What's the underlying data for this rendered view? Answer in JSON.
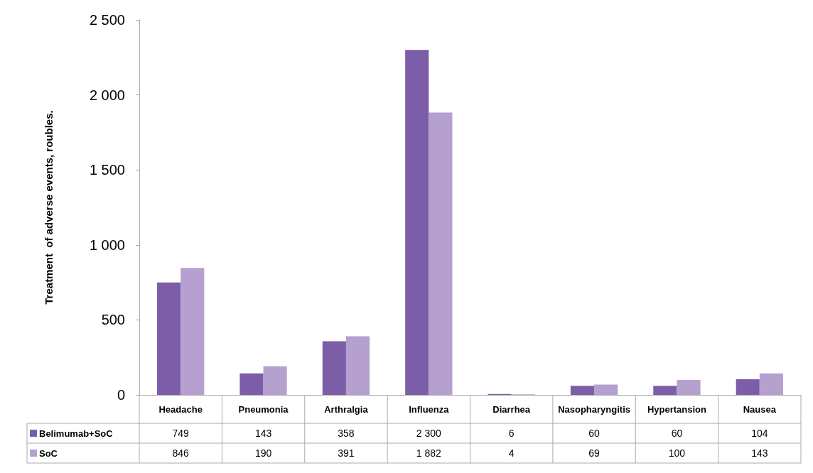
{
  "chart_data": {
    "type": "bar",
    "ylabel": "Treatment  of adverse events, roubles.",
    "categories": [
      "Headache",
      "Pneumonia",
      "Arthralgia",
      "Influenza",
      "Diarrhea",
      "Nasopharyngitis",
      "Hypertansion",
      "Nausea"
    ],
    "series": [
      {
        "name": "Belimumab+SoC",
        "color": "#7b5ea7",
        "values": [
          749,
          143,
          358,
          2300,
          6,
          60,
          60,
          104
        ],
        "value_labels": [
          "749",
          "143",
          "358",
          "2 300",
          "6",
          "60",
          "60",
          "104"
        ]
      },
      {
        "name": "SoC",
        "color": "#b5a0d0",
        "values": [
          846,
          190,
          391,
          1882,
          4,
          69,
          100,
          143
        ],
        "value_labels": [
          "846",
          "190",
          "391",
          "1 882",
          "4",
          "69",
          "100",
          "143"
        ]
      }
    ],
    "ylim": [
      0,
      2500
    ],
    "yticks": [
      0,
      500,
      {
        "value": 1000,
        "label": "1 000"
      },
      {
        "value": 1500,
        "label": "1 500"
      },
      {
        "value": 2000,
        "label": "2 000"
      },
      {
        "value": 2500,
        "label": "2 500"
      }
    ],
    "grid": false,
    "legend": "bottom left"
  }
}
